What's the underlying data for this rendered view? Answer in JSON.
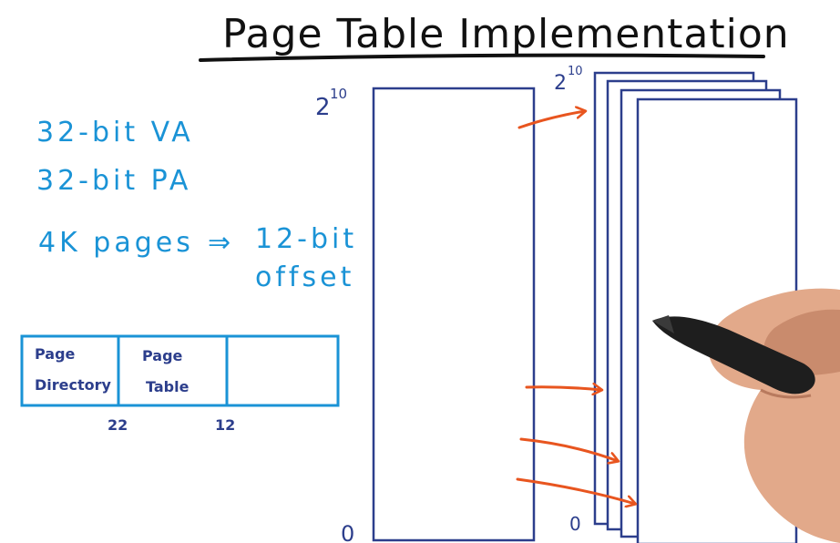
{
  "title": "Page Table Implementation",
  "notes": {
    "va": "32-bit VA",
    "pa": "32-bit PA",
    "pages": "4K pages",
    "arrow": "⇒",
    "offset_line1": "12-bit",
    "offset_line2": "offset"
  },
  "address_format": {
    "fields": [
      {
        "line1": "Page",
        "line2": "Directory"
      },
      {
        "line1": "Page",
        "line2": "Table"
      },
      {
        "line1": "",
        "line2": ""
      }
    ],
    "bit_labels": [
      "22",
      "12"
    ]
  },
  "outer_table": {
    "top_label": "2",
    "top_exp": "10",
    "bottom_label": "0"
  },
  "inner_tables": {
    "top_label": "2",
    "top_exp": "10",
    "bottom_label": "0"
  },
  "colors": {
    "ink_black": "#111111",
    "ink_blue": "#1a93d6",
    "ink_navy": "#2c3e8c",
    "ink_orange": "#e8551f"
  }
}
